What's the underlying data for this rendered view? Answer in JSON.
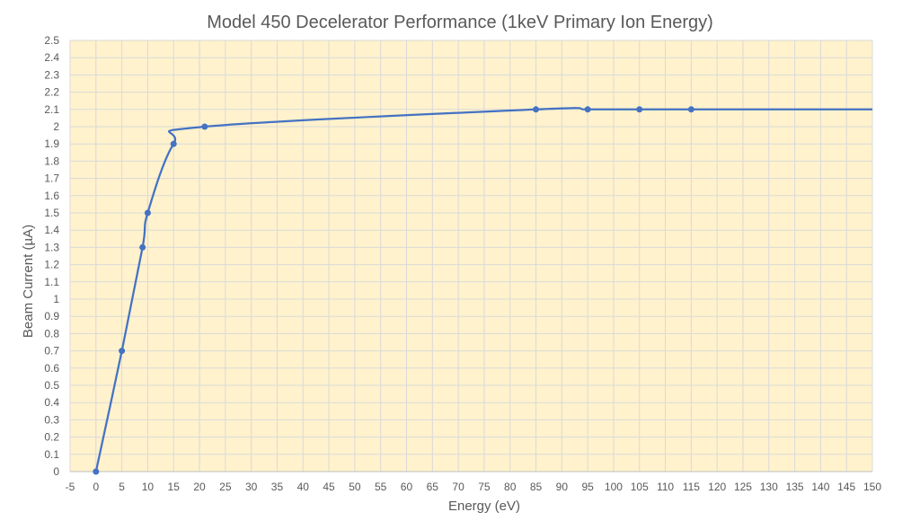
{
  "chart_data": {
    "type": "line",
    "title": "Model 450 Decelerator Performance (1keV Primary Ion  Energy)",
    "xlabel": "Energy (eV)",
    "ylabel": "Beam Current (µA)",
    "xlim": [
      -5,
      150
    ],
    "ylim": [
      0,
      2.5
    ],
    "x_major_step": 5,
    "y_major_step": 0.1,
    "grid": true,
    "smoothed": true,
    "plot_background": "#FFF2CC",
    "grid_color": "#D9D9D9",
    "series": [
      {
        "color": "#4472C4",
        "x": [
          0,
          5,
          9,
          10,
          15,
          21,
          85,
          95,
          105,
          115,
          150
        ],
        "y": [
          0,
          0.7,
          1.3,
          1.5,
          1.9,
          2.0,
          2.1,
          2.1,
          2.1,
          2.1,
          2.1
        ],
        "markers": [
          true,
          true,
          true,
          true,
          true,
          true,
          true,
          true,
          true,
          true,
          false
        ]
      }
    ]
  }
}
